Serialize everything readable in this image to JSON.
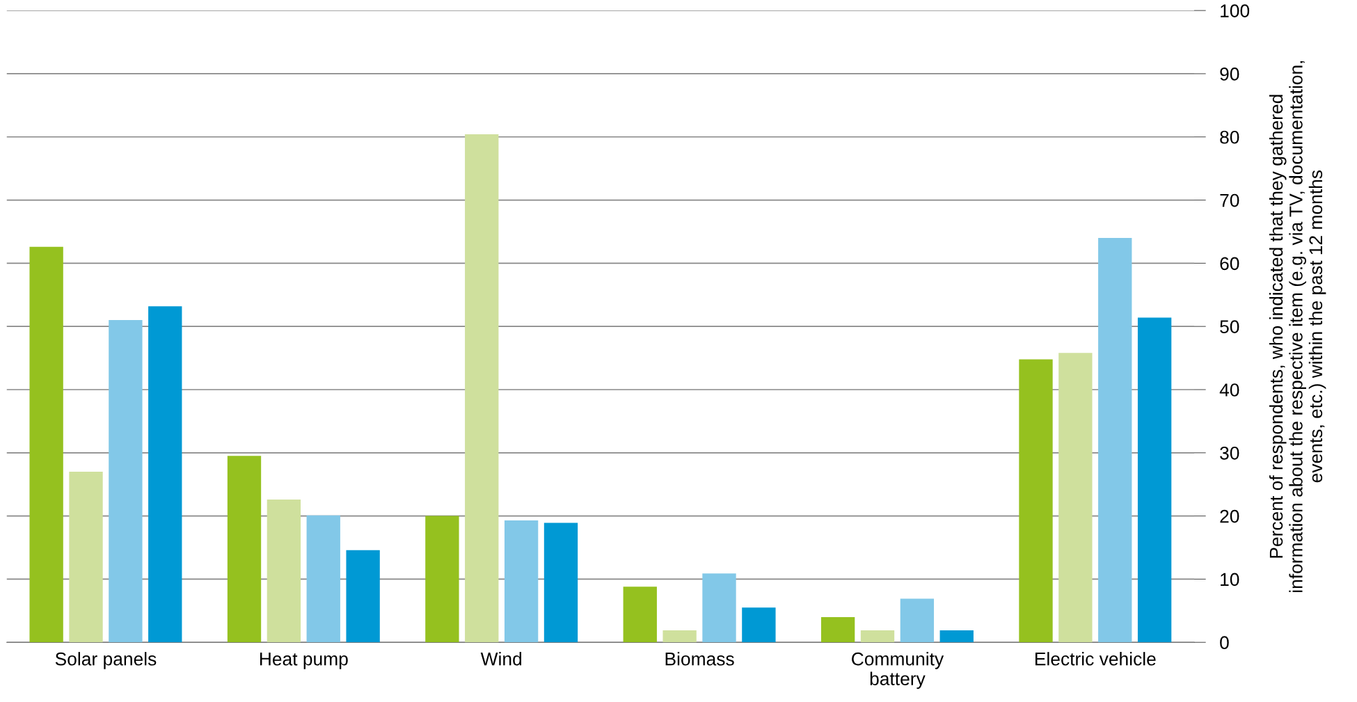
{
  "chart_data": {
    "type": "bar",
    "ylabel": "Percent of respondents, who indicated that they gathered\ninformation about the respective item (e.g. via TV, documentation,\nevents, etc.) within the past 12 months",
    "categories": [
      "Solar panels",
      "Heat pump",
      "Wind",
      "Biomass",
      "Community\nbattery",
      "Electric vehicle"
    ],
    "series": [
      {
        "color": "#95c11f",
        "values": [
          62.6,
          29.5,
          20.0,
          8.8,
          4.0,
          44.8
        ]
      },
      {
        "color": "#cfe09d",
        "values": [
          27.0,
          22.6,
          80.4,
          1.9,
          1.9,
          45.8
        ]
      },
      {
        "color": "#82c8e8",
        "values": [
          51.0,
          20.1,
          19.3,
          10.9,
          6.9,
          64.0
        ]
      },
      {
        "color": "#0099d4",
        "values": [
          53.2,
          14.6,
          18.9,
          5.5,
          1.9,
          51.4
        ]
      }
    ],
    "ylim": [
      0,
      100
    ],
    "yticks": [
      0,
      10,
      20,
      30,
      40,
      50,
      60,
      70,
      80,
      90,
      100
    ],
    "grid": "y",
    "legend": false
  }
}
